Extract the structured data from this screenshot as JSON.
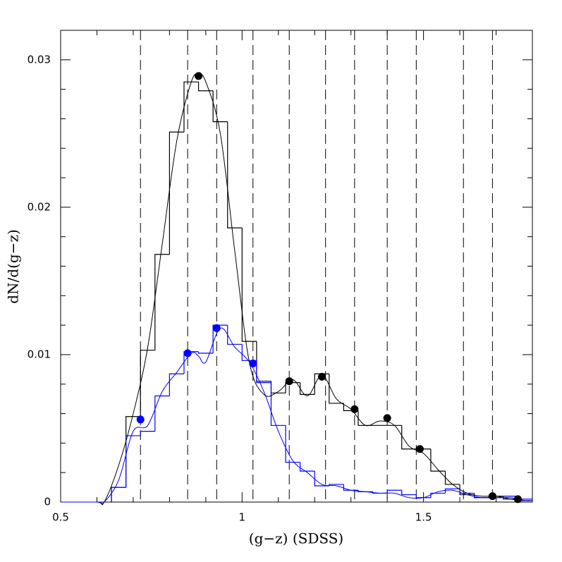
{
  "chart_data": {
    "type": "histogram",
    "xlabel": "(g−z)  (SDSS)",
    "ylabel": "dN/d(g−z)",
    "xlim": [
      0.5,
      1.8
    ],
    "ylim": [
      0,
      0.032
    ],
    "xticks": [
      0.5,
      1,
      1.5
    ],
    "yticks": [
      0,
      0.01,
      0.02,
      0.03
    ],
    "xminorticks": [
      0.6,
      0.7,
      0.8,
      0.9,
      1.1,
      1.2,
      1.3,
      1.4,
      1.6,
      1.7
    ],
    "yminorticks": [
      0.002,
      0.004,
      0.006,
      0.008,
      0.012,
      0.014,
      0.016,
      0.018,
      0.022,
      0.024,
      0.026,
      0.028
    ],
    "bins": [
      0.64,
      0.68,
      0.72,
      0.76,
      0.8,
      0.84,
      0.88,
      0.92,
      0.96,
      1.0,
      1.04,
      1.08,
      1.12,
      1.16,
      1.2,
      1.24,
      1.28,
      1.32,
      1.36,
      1.4,
      1.44,
      1.48,
      1.52,
      1.56,
      1.6,
      1.64,
      1.68,
      1.72,
      1.76,
      1.8
    ],
    "series": [
      {
        "color": "#000000",
        "values": [
          0.001,
          0.0058,
          0.0103,
          0.0168,
          0.0251,
          0.0285,
          0.0279,
          0.0258,
          0.0186,
          0.0109,
          0.0082,
          0.0074,
          0.0081,
          0.0073,
          0.0087,
          0.0067,
          0.0062,
          0.0052,
          0.0052,
          0.0052,
          0.0036,
          0.0036,
          0.0021,
          0.0012,
          0.0005,
          0.0003,
          0.0004,
          0.0002,
          0.0001
        ]
      },
      {
        "color": "#0000ff",
        "values": [
          0.001,
          0.0045,
          0.0048,
          0.0072,
          0.0087,
          0.0102,
          0.0101,
          0.012,
          0.0107,
          0.0096,
          0.0081,
          0.0052,
          0.0027,
          0.0021,
          0.0011,
          0.0012,
          0.0008,
          0.0007,
          0.0006,
          0.0008,
          0.0005,
          0.0003,
          0.0006,
          0.0009,
          0.0006,
          0.0003,
          0.0003,
          0.0004,
          0.0002
        ]
      }
    ],
    "curves": {
      "x": [
        0.5,
        0.6,
        0.62,
        0.66,
        0.7,
        0.74,
        0.78,
        0.82,
        0.86,
        0.88,
        0.9,
        0.94,
        0.98,
        1.02,
        1.06,
        1.1,
        1.14,
        1.18,
        1.22,
        1.26,
        1.3,
        1.34,
        1.38,
        1.42,
        1.46,
        1.5,
        1.54,
        1.58,
        1.62,
        1.66,
        1.7,
        1.74,
        1.78,
        1.8
      ],
      "series": [
        {
          "color": "#000000",
          "values": [
            0,
            0,
            0,
            0.0025,
            0.006,
            0.0105,
            0.0175,
            0.0245,
            0.0285,
            0.029,
            0.0285,
            0.025,
            0.017,
            0.0095,
            0.0073,
            0.0075,
            0.0083,
            0.0072,
            0.0086,
            0.007,
            0.0063,
            0.0052,
            0.0055,
            0.0052,
            0.0038,
            0.0033,
            0.0022,
            0.0012,
            0.0006,
            0.0004,
            0.0004,
            0.0002,
            0.0001,
            0.0001
          ]
        },
        {
          "color": "#0000ff",
          "values": [
            0,
            0,
            0,
            0.0015,
            0.0048,
            0.0052,
            0.0075,
            0.0088,
            0.0101,
            0.0099,
            0.0095,
            0.0118,
            0.0105,
            0.0095,
            0.0075,
            0.0048,
            0.0028,
            0.002,
            0.0012,
            0.0011,
            0.0008,
            0.0007,
            0.0006,
            0.0006,
            0.0003,
            0.0003,
            0.0007,
            0.0008,
            0.0005,
            0.0003,
            0.0003,
            0.0003,
            0.0001,
            0.0001
          ]
        }
      ]
    },
    "points": [
      {
        "color": "#000000",
        "x": [
          0.88,
          1.13,
          1.22,
          1.31,
          1.4,
          1.49,
          1.69,
          1.76
        ],
        "y": [
          0.0289,
          0.0082,
          0.0085,
          0.0063,
          0.0057,
          0.0036,
          0.0004,
          0.0002
        ]
      },
      {
        "color": "#0000ff",
        "x": [
          0.72,
          0.85,
          0.93,
          1.03
        ],
        "y": [
          0.0056,
          0.0101,
          0.0118,
          0.0094
        ]
      }
    ],
    "vlines": [
      0.72,
      0.85,
      0.93,
      1.03,
      1.13,
      1.23,
      1.31,
      1.4,
      1.48,
      1.61,
      1.69
    ]
  }
}
